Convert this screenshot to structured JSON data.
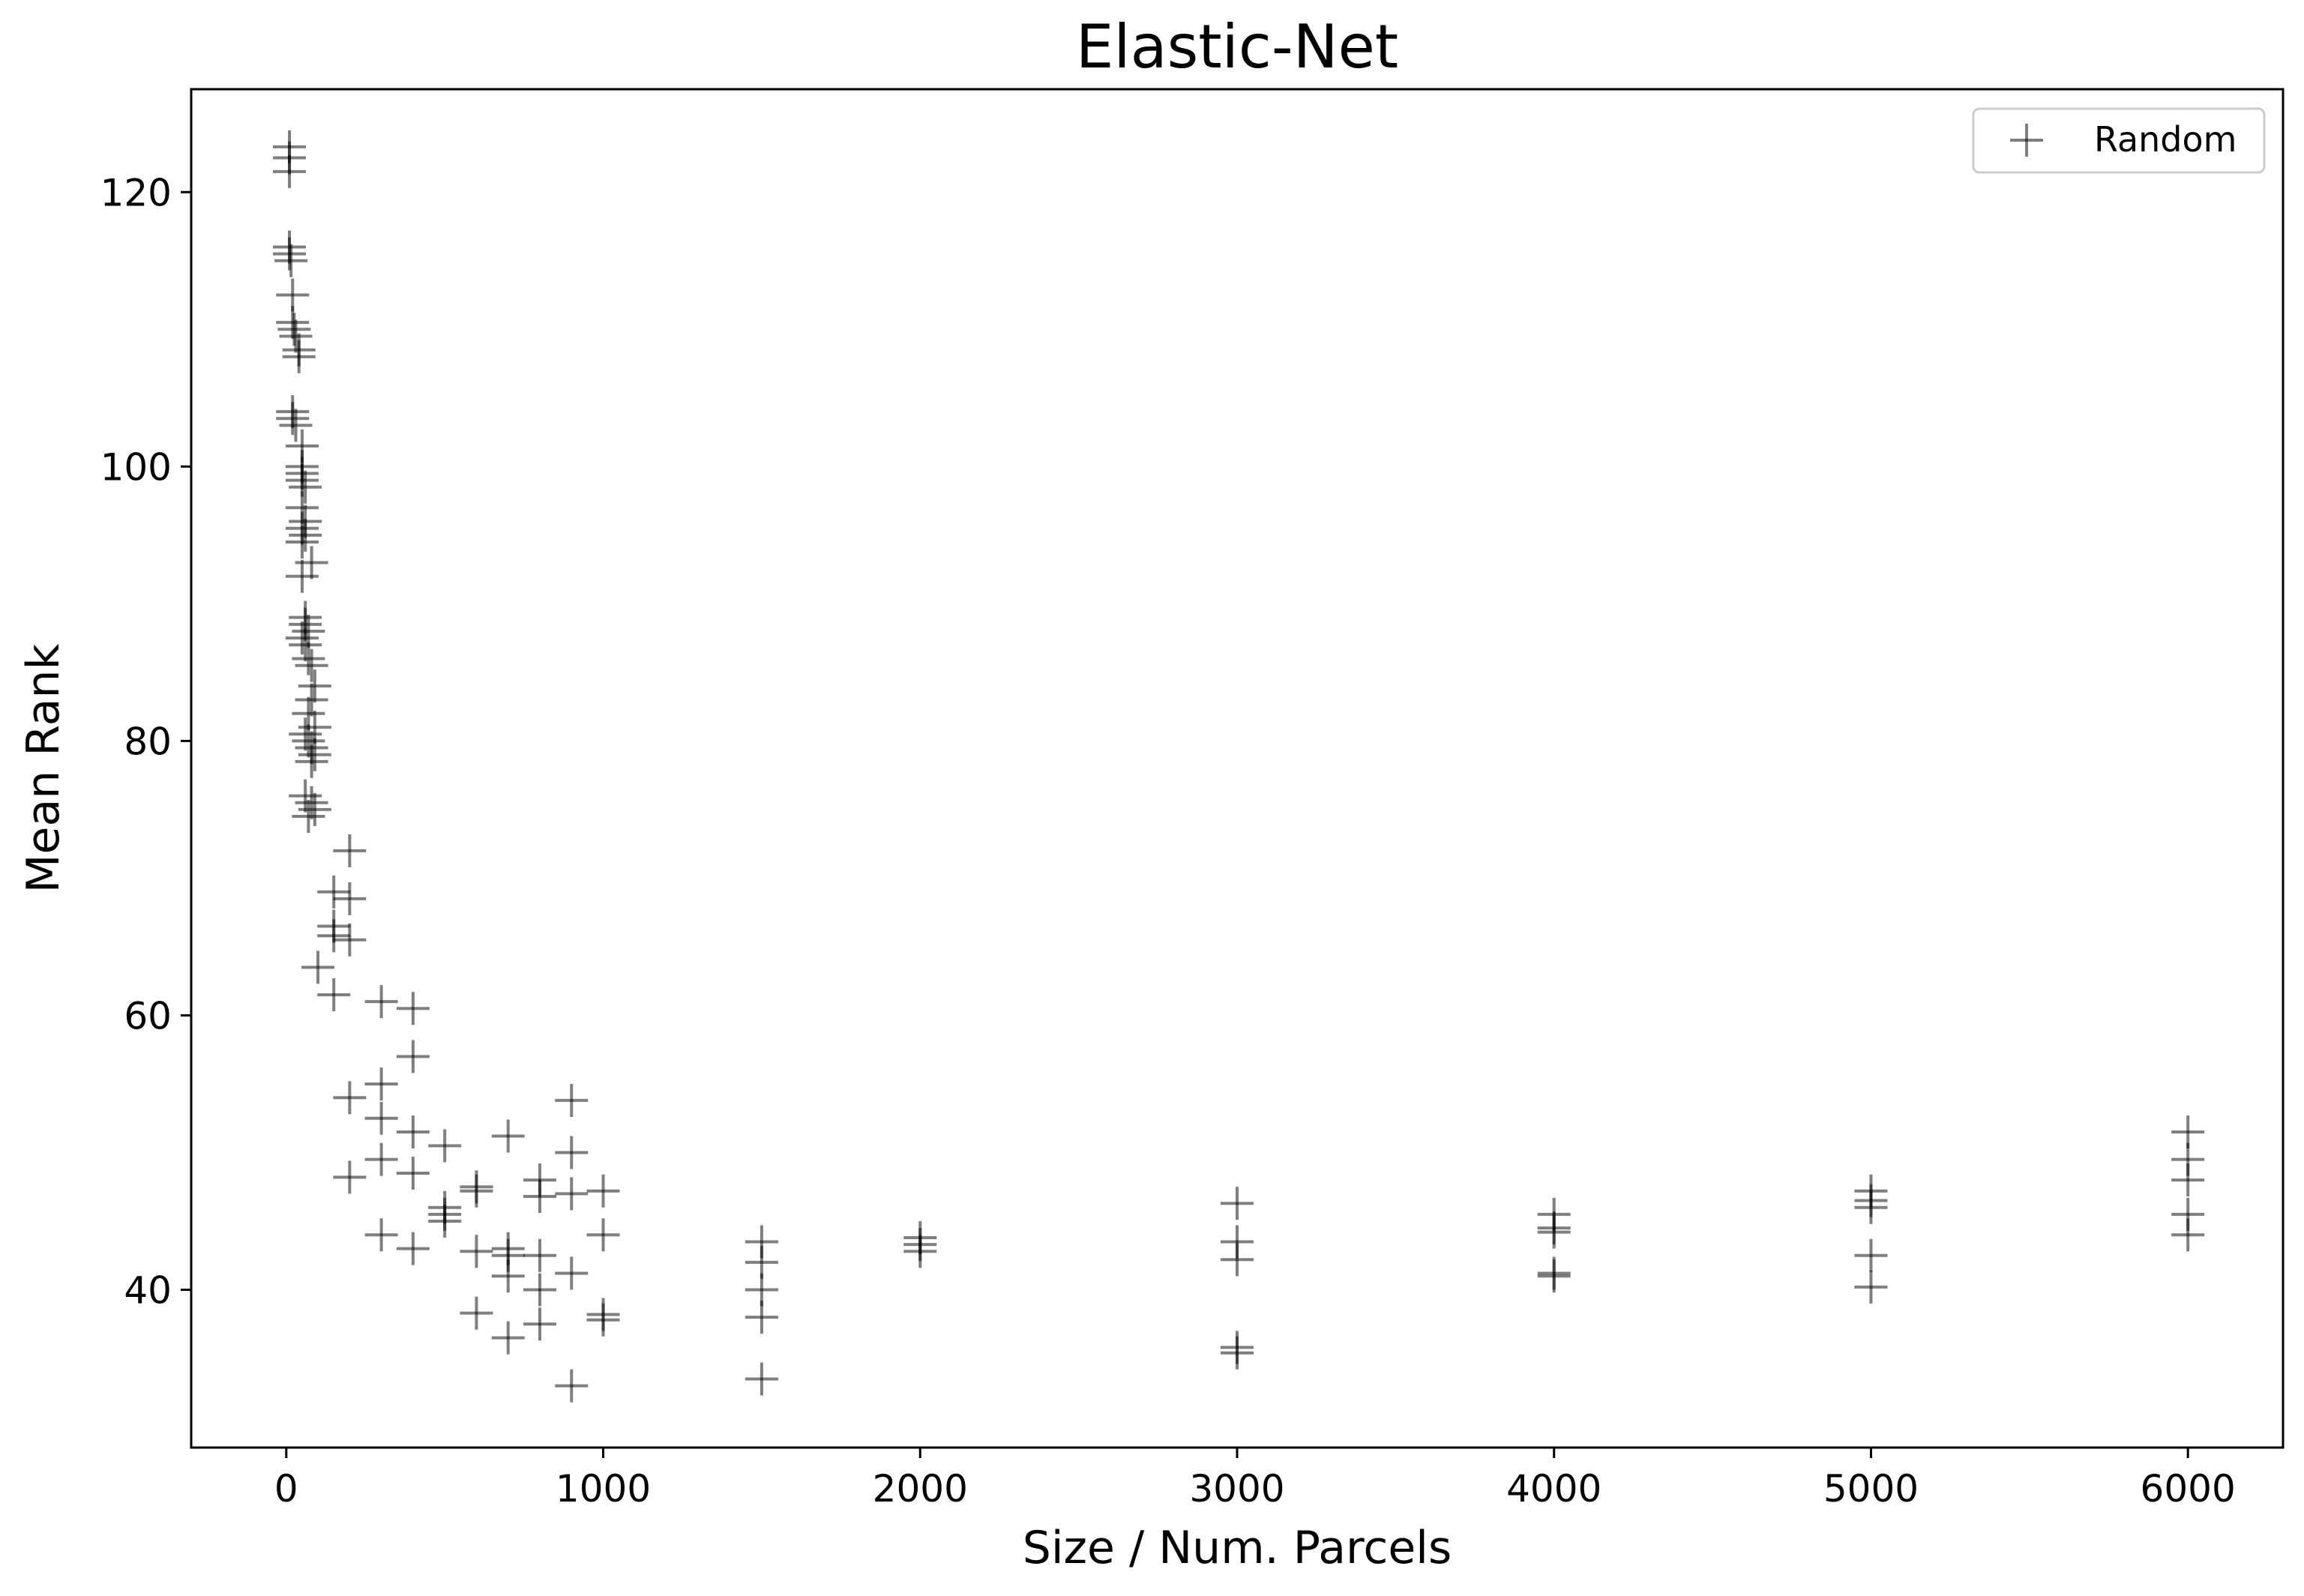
{
  "chart_data": {
    "type": "scatter",
    "title": "Elastic-Net",
    "xlabel": "Size / Num. Parcels",
    "ylabel": "Mean Rank",
    "xlim": [
      -300,
      6300
    ],
    "ylim": [
      28.5,
      127.5
    ],
    "xticks": [
      0,
      1000,
      2000,
      3000,
      4000,
      5000,
      6000
    ],
    "yticks": [
      40,
      60,
      80,
      100,
      120
    ],
    "grid": false,
    "legend": {
      "placement": "top-right",
      "entries": [
        "Random"
      ]
    },
    "series": [
      {
        "name": "Random",
        "color": "#000000",
        "opacity": 0.5,
        "marker": "plus",
        "points": [
          [
            10,
            123.3
          ],
          [
            10,
            122.5
          ],
          [
            10,
            121.5
          ],
          [
            10,
            116.0
          ],
          [
            10,
            115.5
          ],
          [
            15,
            115.0
          ],
          [
            20,
            112.5
          ],
          [
            20,
            110.5
          ],
          [
            25,
            110.0
          ],
          [
            30,
            109.5
          ],
          [
            40,
            108.5
          ],
          [
            40,
            108.0
          ],
          [
            20,
            104.0
          ],
          [
            20,
            103.5
          ],
          [
            30,
            103.0
          ],
          [
            50,
            101.5
          ],
          [
            50,
            100.0
          ],
          [
            50,
            99.5
          ],
          [
            50,
            99.0
          ],
          [
            60,
            98.5
          ],
          [
            50,
            97.0
          ],
          [
            60,
            96.0
          ],
          [
            50,
            95.5
          ],
          [
            60,
            95.0
          ],
          [
            50,
            94.5
          ],
          [
            80,
            93.0
          ],
          [
            50,
            92.0
          ],
          [
            60,
            89.0
          ],
          [
            60,
            88.5
          ],
          [
            70,
            88.0
          ],
          [
            50,
            87.5
          ],
          [
            60,
            87.0
          ],
          [
            70,
            86.0
          ],
          [
            80,
            85.5
          ],
          [
            90,
            84.0
          ],
          [
            80,
            83.0
          ],
          [
            70,
            82.0
          ],
          [
            90,
            81.0
          ],
          [
            60,
            80.5
          ],
          [
            70,
            80.0
          ],
          [
            80,
            79.5
          ],
          [
            90,
            79.0
          ],
          [
            80,
            78.5
          ],
          [
            60,
            76.0
          ],
          [
            80,
            75.5
          ],
          [
            90,
            75.0
          ],
          [
            70,
            74.5
          ],
          [
            200,
            72.0
          ],
          [
            150,
            69.0
          ],
          [
            200,
            68.5
          ],
          [
            150,
            66.5
          ],
          [
            150,
            65.8
          ],
          [
            200,
            65.5
          ],
          [
            100,
            63.5
          ],
          [
            150,
            61.5
          ],
          [
            300,
            61.0
          ],
          [
            400,
            60.5
          ],
          [
            400,
            57.0
          ],
          [
            300,
            55.0
          ],
          [
            200,
            54.0
          ],
          [
            300,
            52.5
          ],
          [
            400,
            51.5
          ],
          [
            300,
            49.5
          ],
          [
            400,
            48.5
          ],
          [
            200,
            48.2
          ],
          [
            300,
            44.0
          ],
          [
            400,
            43.0
          ],
          [
            500,
            50.5
          ],
          [
            500,
            46.0
          ],
          [
            500,
            45.5
          ],
          [
            500,
            45.0
          ],
          [
            600,
            47.5
          ],
          [
            600,
            47.2
          ],
          [
            600,
            42.8
          ],
          [
            600,
            38.3
          ],
          [
            700,
            51.2
          ],
          [
            700,
            43.0
          ],
          [
            700,
            42.5
          ],
          [
            700,
            41.0
          ],
          [
            700,
            36.5
          ],
          [
            800,
            48.0
          ],
          [
            800,
            46.8
          ],
          [
            800,
            42.5
          ],
          [
            800,
            40.0
          ],
          [
            800,
            37.5
          ],
          [
            900,
            53.8
          ],
          [
            900,
            50.0
          ],
          [
            900,
            47.0
          ],
          [
            900,
            41.2
          ],
          [
            900,
            33.0
          ],
          [
            1000,
            47.2
          ],
          [
            1000,
            44.0
          ],
          [
            1000,
            38.2
          ],
          [
            1000,
            37.8
          ],
          [
            1500,
            43.5
          ],
          [
            1500,
            42.0
          ],
          [
            1500,
            40.0
          ],
          [
            1500,
            38.0
          ],
          [
            1500,
            33.5
          ],
          [
            2000,
            43.8
          ],
          [
            2000,
            43.3
          ],
          [
            2000,
            42.8
          ],
          [
            3000,
            46.3
          ],
          [
            3000,
            43.5
          ],
          [
            3000,
            42.2
          ],
          [
            3000,
            35.8
          ],
          [
            3000,
            35.4
          ],
          [
            4000,
            45.5
          ],
          [
            4000,
            44.5
          ],
          [
            4000,
            44.2
          ],
          [
            4000,
            41.2
          ],
          [
            4000,
            41.0
          ],
          [
            5000,
            47.2
          ],
          [
            5000,
            46.5
          ],
          [
            5000,
            46.0
          ],
          [
            5000,
            42.5
          ],
          [
            5000,
            40.2
          ],
          [
            6000,
            51.5
          ],
          [
            6000,
            49.5
          ],
          [
            6000,
            48.0
          ],
          [
            6000,
            45.5
          ],
          [
            6000,
            44.0
          ]
        ]
      }
    ]
  }
}
